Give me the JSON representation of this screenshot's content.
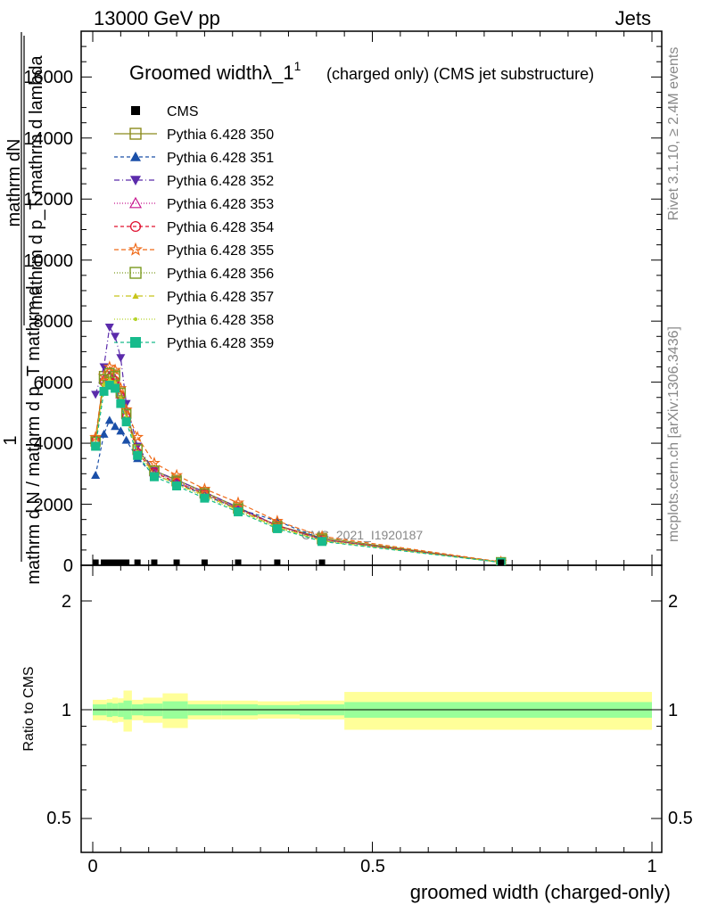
{
  "header": {
    "left": "13000 GeV pp",
    "right": "Jets"
  },
  "side": {
    "rivet": "Rivet 3.1.10, ≥ 2.4M events",
    "mcplots": "mcplots.cern.ch [arXiv:1306.3436]"
  },
  "chart_data": {
    "type": "line",
    "title": "Groomed widthλ_1",
    "title_sup": "1",
    "title_suffix": "(charged only) (CMS jet substructure)",
    "analysis": "CMS_2021_I1920187",
    "ylabel_top_num": "mathrm dN",
    "ylabel_top_den": "mathrm d p_T mathrm d lambda",
    "ylabel_one": "1",
    "ylabel_bot": "mathrm d N / mathrm d p_T mathrm d",
    "xlabel": "groomed width (charged-only)",
    "ratio_ylabel": "Ratio to CMS",
    "xlim": [
      0,
      1
    ],
    "ylim": [
      0,
      17500
    ],
    "ratio_ylim": [
      0.42,
      2.3
    ],
    "main_yticks": [
      0,
      2000,
      4000,
      6000,
      8000,
      10000,
      12000,
      14000,
      16000
    ],
    "main_yticklabels": [
      "0",
      "2000",
      "4000",
      "6000",
      "8000",
      "10000",
      "12000",
      "14000",
      "16000"
    ],
    "xticks": [
      0,
      0.5,
      1
    ],
    "xticklabels": [
      "0",
      "0.5",
      "1"
    ],
    "ratio_yticks": [
      0.5,
      1,
      2
    ],
    "ratio_yticklabels": [
      "0.5",
      "1",
      "2"
    ],
    "x": [
      0.005,
      0.02,
      0.03,
      0.04,
      0.05,
      0.06,
      0.08,
      0.11,
      0.15,
      0.2,
      0.26,
      0.33,
      0.41,
      0.73
    ],
    "cms": {
      "name": "CMS",
      "color": "#000000",
      "values": [
        30,
        30,
        30,
        30,
        30,
        30,
        30,
        30,
        30,
        30,
        30,
        30,
        30,
        30
      ]
    },
    "series": [
      {
        "name": "Pythia 6.428 350",
        "color": "#8b8b1c",
        "marker": "square-open",
        "dash": "",
        "values": [
          4100,
          6200,
          6300,
          6250,
          5700,
          5000,
          3800,
          3100,
          2800,
          2400,
          1900,
          1300,
          900,
          100
        ]
      },
      {
        "name": "Pythia 6.428 351",
        "color": "#1a4fa8",
        "marker": "triangle-up",
        "dash": "4,3",
        "values": [
          2950,
          4300,
          4750,
          4550,
          4400,
          4100,
          3500,
          2950,
          2700,
          2300,
          1850,
          1450,
          850,
          100
        ]
      },
      {
        "name": "Pythia 6.428 352",
        "color": "#5b2bab",
        "marker": "triangle-down",
        "dash": "6,3,1,3",
        "values": [
          5600,
          6500,
          7800,
          7500,
          6800,
          5300,
          3900,
          3100,
          2800,
          2400,
          1900,
          1300,
          850,
          100
        ]
      },
      {
        "name": "Pythia 6.428 353",
        "color": "#c7168f",
        "marker": "triangle-open",
        "dash": "1,2",
        "values": [
          4150,
          6100,
          6200,
          6100,
          5600,
          4950,
          3750,
          3050,
          2750,
          2350,
          1850,
          1300,
          850,
          100
        ]
      },
      {
        "name": "Pythia 6.428 354",
        "color": "#e0102f",
        "marker": "circle-open",
        "dash": "4,3",
        "values": [
          4100,
          6000,
          6150,
          6050,
          5550,
          4900,
          3700,
          3050,
          2700,
          2350,
          1850,
          1300,
          850,
          100
        ]
      },
      {
        "name": "Pythia 6.428 355",
        "color": "#ef6a18",
        "marker": "star-open",
        "dash": "5,3",
        "values": [
          4200,
          6200,
          6500,
          6400,
          5800,
          5100,
          4200,
          3350,
          2950,
          2500,
          2050,
          1450,
          950,
          110
        ]
      },
      {
        "name": "Pythia 6.428 356",
        "color": "#7a9a1f",
        "marker": "square-open",
        "dash": "1,2",
        "values": [
          4050,
          6100,
          6300,
          6200,
          5650,
          4950,
          3800,
          3100,
          2750,
          2350,
          1850,
          1250,
          850,
          100
        ]
      },
      {
        "name": "Pythia 6.428 357",
        "color": "#c8c41a",
        "marker": "tri-small",
        "dash": "6,3,1,3",
        "values": [
          4000,
          5950,
          6100,
          6000,
          5500,
          4850,
          3700,
          3000,
          2650,
          2300,
          1800,
          1250,
          800,
          100
        ]
      },
      {
        "name": "Pythia 6.428 358",
        "color": "#b5d42a",
        "marker": "dot",
        "dash": "1,2",
        "values": [
          4000,
          5900,
          6050,
          5950,
          5450,
          4800,
          3650,
          2980,
          2650,
          2250,
          1780,
          1230,
          800,
          95
        ]
      },
      {
        "name": "Pythia 6.428 359",
        "color": "#17bb8c",
        "marker": "square",
        "dash": "4,3",
        "values": [
          3900,
          5700,
          5900,
          5800,
          5300,
          4700,
          3600,
          2900,
          2600,
          2200,
          1750,
          1200,
          780,
          95
        ]
      }
    ],
    "ratio_bands": {
      "edges": [
        0,
        0.025,
        0.035,
        0.045,
        0.055,
        0.07,
        0.09,
        0.125,
        0.17,
        0.23,
        0.295,
        0.37,
        0.45,
        1.0
      ],
      "green_half": [
        0.035,
        0.045,
        0.04,
        0.045,
        0.06,
        0.035,
        0.04,
        0.055,
        0.035,
        0.035,
        0.03,
        0.035,
        0.05
      ],
      "yellow_half": [
        0.065,
        0.07,
        0.08,
        0.075,
        0.13,
        0.065,
        0.08,
        0.11,
        0.06,
        0.06,
        0.055,
        0.06,
        0.12
      ],
      "green_color": "#99ff99",
      "yellow_color": "#ffff99"
    }
  }
}
